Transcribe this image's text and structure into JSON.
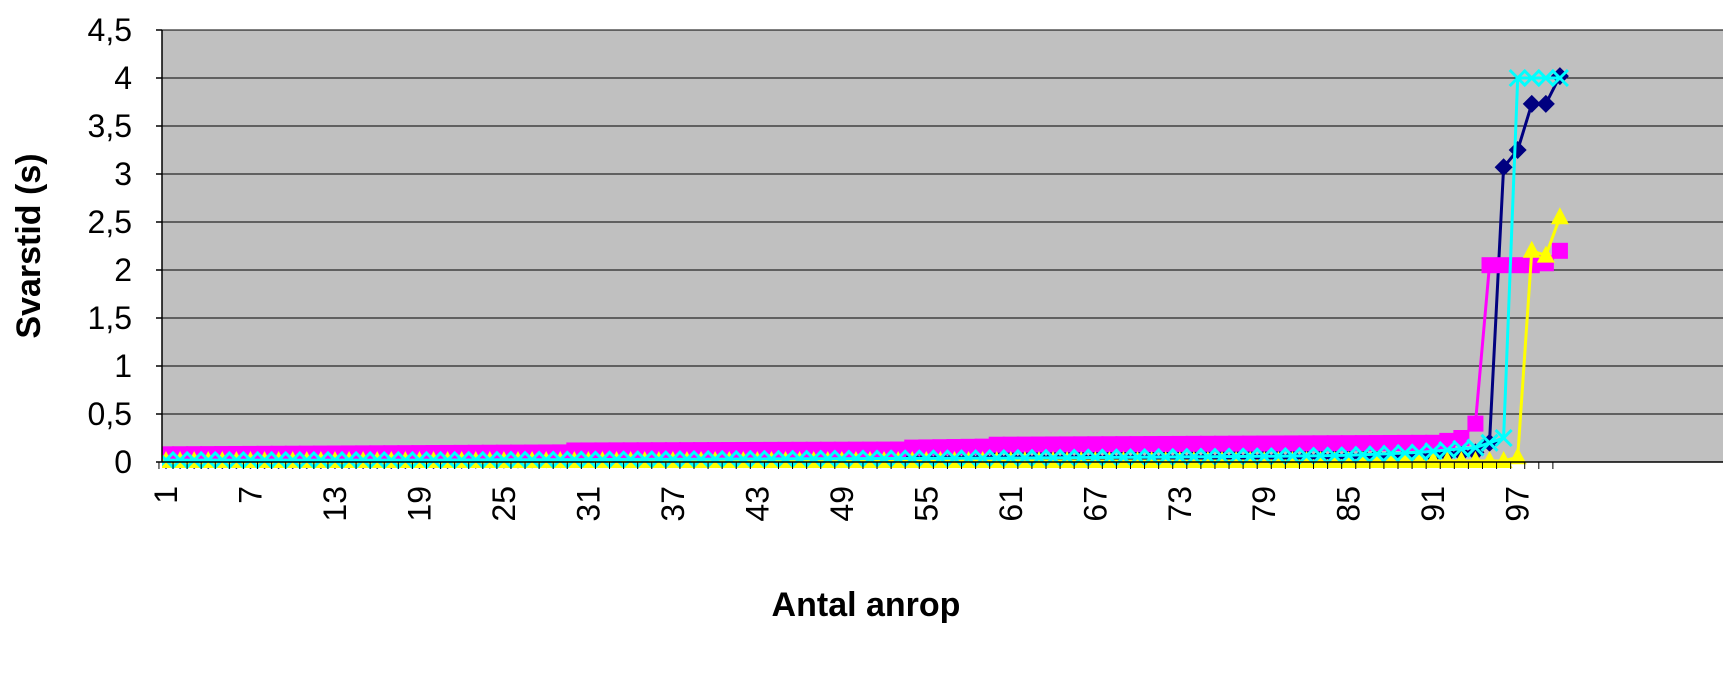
{
  "chart_data": {
    "type": "line",
    "title": "",
    "xlabel": "Antal anrop",
    "ylabel": "Svarstid (s)",
    "ylim": [
      0,
      4.5
    ],
    "y_ticks": [
      "0",
      "0,5",
      "1",
      "1,5",
      "2",
      "2,5",
      "3",
      "3,5",
      "4",
      "4,5"
    ],
    "x_tick_labels": [
      "1",
      "7",
      "13",
      "19",
      "25",
      "31",
      "37",
      "43",
      "49",
      "55",
      "61",
      "67",
      "73",
      "79",
      "85",
      "91",
      "97"
    ],
    "x_range_visible": [
      1,
      100
    ],
    "grid": "horizontal",
    "plot_background": "#c0c0c0",
    "legend": "none",
    "series": [
      {
        "color": "#000080",
        "marker": "diamond",
        "points": [
          [
            1,
            0.02
          ],
          [
            10,
            0.02
          ],
          [
            20,
            0.02
          ],
          [
            30,
            0.03
          ],
          [
            40,
            0.03
          ],
          [
            50,
            0.03
          ],
          [
            60,
            0.04
          ],
          [
            70,
            0.04
          ],
          [
            80,
            0.05
          ],
          [
            90,
            0.06
          ],
          [
            94,
            0.1
          ],
          [
            95,
            0.2
          ],
          [
            96,
            3.07
          ],
          [
            97,
            3.25
          ],
          [
            98,
            3.73
          ],
          [
            99,
            3.73
          ],
          [
            100,
            4.02
          ]
        ]
      },
      {
        "color": "#ff00ff",
        "marker": "square",
        "points": [
          [
            1,
            0.08
          ],
          [
            29,
            0.1
          ],
          [
            30,
            0.12
          ],
          [
            53,
            0.13
          ],
          [
            54,
            0.15
          ],
          [
            59,
            0.16
          ],
          [
            60,
            0.18
          ],
          [
            91,
            0.2
          ],
          [
            92,
            0.22
          ],
          [
            93,
            0.25
          ],
          [
            94,
            0.4
          ],
          [
            95,
            2.05
          ],
          [
            96,
            2.05
          ],
          [
            97,
            2.05
          ],
          [
            98,
            2.05
          ],
          [
            99,
            2.07
          ],
          [
            100,
            2.2
          ]
        ]
      },
      {
        "color": "#ffff00",
        "marker": "triangle",
        "points": [
          [
            1,
            0.01
          ],
          [
            20,
            0.01
          ],
          [
            40,
            0.01
          ],
          [
            60,
            0.01
          ],
          [
            80,
            0.01
          ],
          [
            90,
            0.01
          ],
          [
            96,
            0.01
          ],
          [
            97,
            0.05
          ],
          [
            98,
            2.2
          ],
          [
            99,
            2.15
          ],
          [
            100,
            2.55
          ]
        ]
      },
      {
        "color": "#00ffff",
        "marker": "x",
        "points": [
          [
            1,
            0.02
          ],
          [
            20,
            0.02
          ],
          [
            40,
            0.03
          ],
          [
            60,
            0.04
          ],
          [
            80,
            0.06
          ],
          [
            85,
            0.07
          ],
          [
            90,
            0.1
          ],
          [
            94,
            0.15
          ],
          [
            96,
            0.25
          ],
          [
            97,
            4.0
          ],
          [
            98,
            4.0
          ],
          [
            99,
            4.0
          ],
          [
            100,
            4.0
          ]
        ]
      }
    ]
  }
}
